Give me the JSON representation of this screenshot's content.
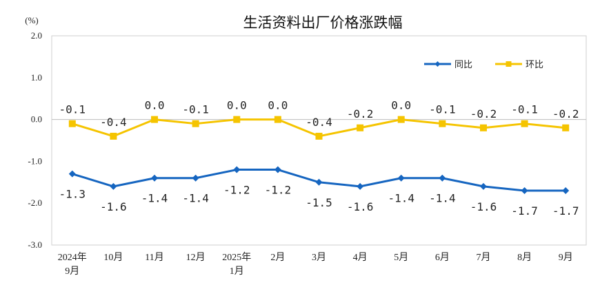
{
  "chart_data": {
    "type": "line",
    "title": "生活资料出厂价格涨跌幅",
    "unit_label": "(%)",
    "ylim": [
      -3.0,
      2.0
    ],
    "yticks": [
      "2.0",
      "1.0",
      "0.0",
      "-1.0",
      "-2.0",
      "-3.0"
    ],
    "categories": [
      "2024年\n9月",
      "10月",
      "11月",
      "12月",
      "2025年\n1月",
      "2月",
      "3月",
      "4月",
      "5月",
      "6月",
      "7月",
      "8月",
      "9月"
    ],
    "series": [
      {
        "name": "同比",
        "color": "#1565C0",
        "values": [
          -1.3,
          -1.6,
          -1.4,
          -1.4,
          -1.2,
          -1.2,
          -1.5,
          -1.6,
          -1.4,
          -1.4,
          -1.6,
          -1.7,
          -1.7
        ],
        "labels": [
          "-1.3",
          "-1.6",
          "-1.4",
          "-1.4",
          "-1.2",
          "-1.2",
          "-1.5",
          "-1.6",
          "-1.4",
          "-1.4",
          "-1.6",
          "-1.7",
          "-1.7"
        ]
      },
      {
        "name": "环比",
        "color": "#F5C400",
        "values": [
          -0.1,
          -0.4,
          0.0,
          -0.1,
          0.0,
          0.0,
          -0.4,
          -0.2,
          0.0,
          -0.1,
          -0.2,
          -0.1,
          -0.2
        ],
        "labels": [
          "-0.1",
          "-0.4",
          "0.0",
          "-0.1",
          "0.0",
          "0.0",
          "-0.4",
          "-0.2",
          "0.0",
          "-0.1",
          "-0.2",
          "-0.1",
          "-0.2"
        ]
      }
    ],
    "legend_position": "top-right",
    "zero_line": true
  }
}
